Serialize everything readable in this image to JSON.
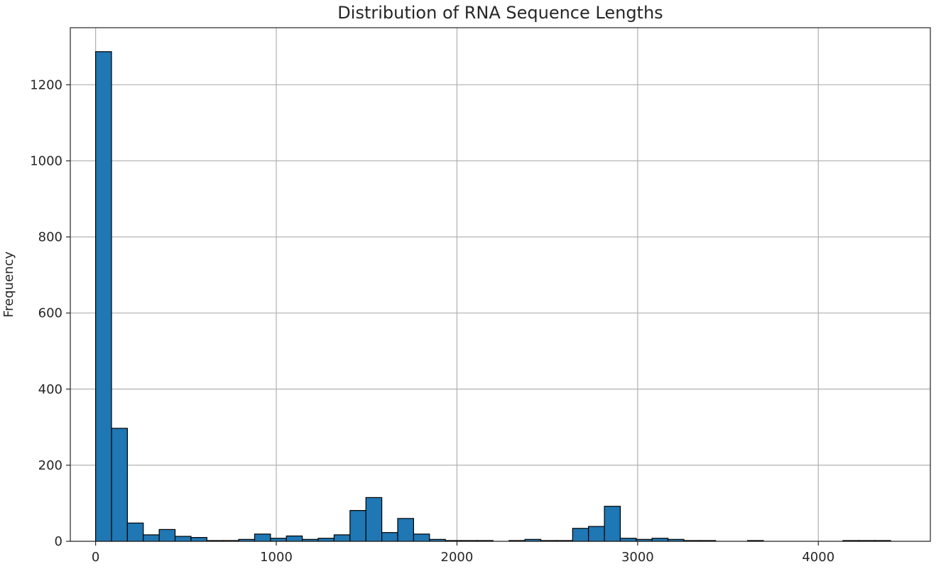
{
  "chart_data": {
    "type": "bar",
    "title": "Distribution of RNA Sequence Lengths",
    "xlabel": "",
    "ylabel": "Frequency",
    "xlim": [
      -140,
      4620
    ],
    "ylim": [
      0,
      1350
    ],
    "xticks": [
      0,
      1000,
      2000,
      3000,
      4000
    ],
    "yticks": [
      0,
      200,
      400,
      600,
      800,
      1000,
      1200
    ],
    "grid": true,
    "bar_color": "#1f77b4",
    "edge_color": "#000000",
    "bin_start": 0,
    "bin_width": 88,
    "values": [
      1287,
      297,
      48,
      17,
      31,
      13,
      10,
      2,
      2,
      5,
      19,
      8,
      14,
      5,
      8,
      17,
      81,
      115,
      23,
      60,
      19,
      5,
      2,
      2,
      2,
      0,
      2,
      5,
      2,
      2,
      34,
      39,
      92,
      8,
      5,
      8,
      5,
      2,
      2,
      0,
      0,
      2,
      0,
      0,
      0,
      0,
      0,
      2,
      2,
      2
    ]
  }
}
